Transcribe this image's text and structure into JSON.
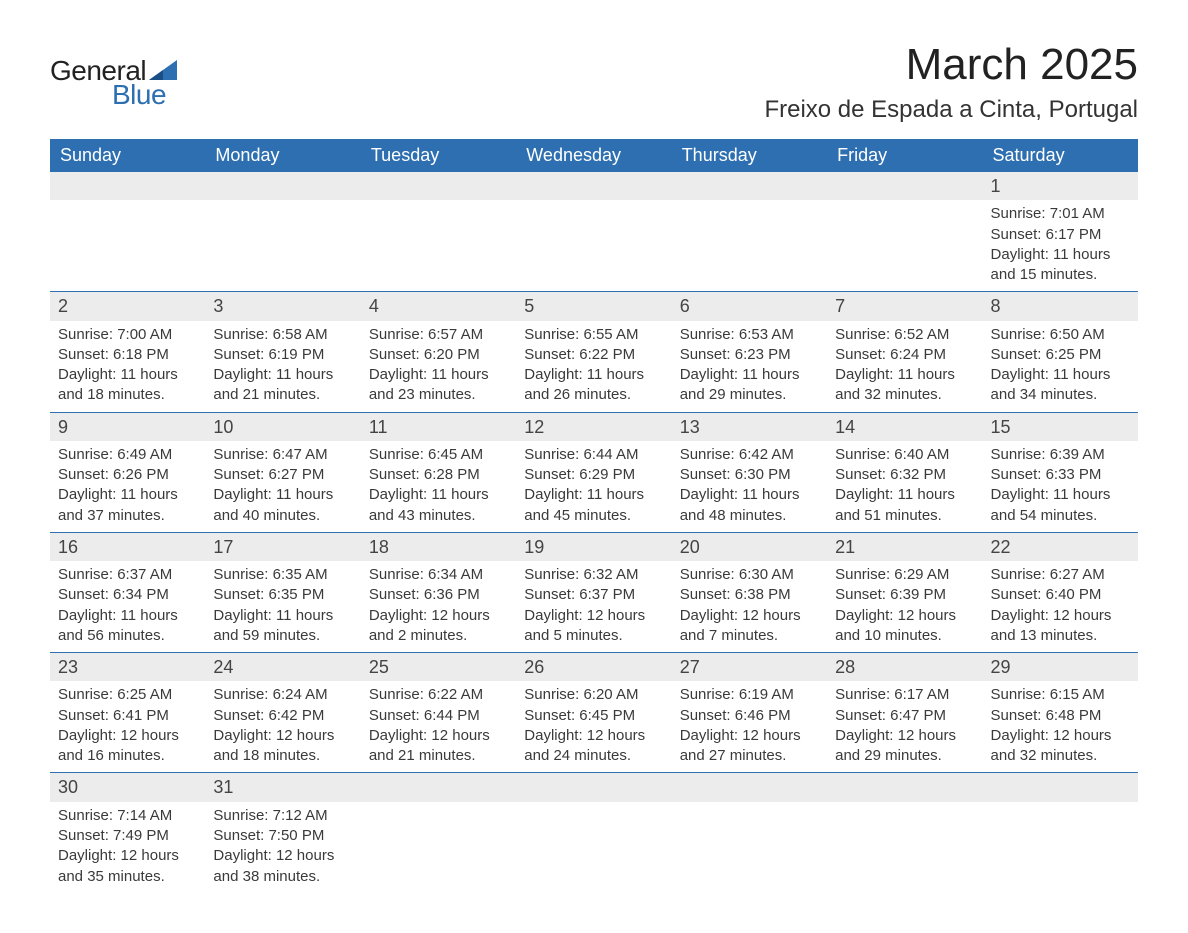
{
  "logo": {
    "text1": "General",
    "text2": "Blue"
  },
  "title": {
    "month": "March 2025",
    "location": "Freixo de Espada a Cinta, Portugal"
  },
  "colors": {
    "header_bg": "#2d6fb0",
    "header_text": "#ffffff",
    "daynum_bg": "#ececec",
    "row_border": "#2d6fb0",
    "page_bg": "#ffffff",
    "text": "#3a3a3a"
  },
  "weekdays": [
    "Sunday",
    "Monday",
    "Tuesday",
    "Wednesday",
    "Thursday",
    "Friday",
    "Saturday"
  ],
  "weeks": [
    [
      null,
      null,
      null,
      null,
      null,
      null,
      {
        "n": "1",
        "sunrise": "Sunrise: 7:01 AM",
        "sunset": "Sunset: 6:17 PM",
        "dl1": "Daylight: 11 hours",
        "dl2": "and 15 minutes."
      }
    ],
    [
      {
        "n": "2",
        "sunrise": "Sunrise: 7:00 AM",
        "sunset": "Sunset: 6:18 PM",
        "dl1": "Daylight: 11 hours",
        "dl2": "and 18 minutes."
      },
      {
        "n": "3",
        "sunrise": "Sunrise: 6:58 AM",
        "sunset": "Sunset: 6:19 PM",
        "dl1": "Daylight: 11 hours",
        "dl2": "and 21 minutes."
      },
      {
        "n": "4",
        "sunrise": "Sunrise: 6:57 AM",
        "sunset": "Sunset: 6:20 PM",
        "dl1": "Daylight: 11 hours",
        "dl2": "and 23 minutes."
      },
      {
        "n": "5",
        "sunrise": "Sunrise: 6:55 AM",
        "sunset": "Sunset: 6:22 PM",
        "dl1": "Daylight: 11 hours",
        "dl2": "and 26 minutes."
      },
      {
        "n": "6",
        "sunrise": "Sunrise: 6:53 AM",
        "sunset": "Sunset: 6:23 PM",
        "dl1": "Daylight: 11 hours",
        "dl2": "and 29 minutes."
      },
      {
        "n": "7",
        "sunrise": "Sunrise: 6:52 AM",
        "sunset": "Sunset: 6:24 PM",
        "dl1": "Daylight: 11 hours",
        "dl2": "and 32 minutes."
      },
      {
        "n": "8",
        "sunrise": "Sunrise: 6:50 AM",
        "sunset": "Sunset: 6:25 PM",
        "dl1": "Daylight: 11 hours",
        "dl2": "and 34 minutes."
      }
    ],
    [
      {
        "n": "9",
        "sunrise": "Sunrise: 6:49 AM",
        "sunset": "Sunset: 6:26 PM",
        "dl1": "Daylight: 11 hours",
        "dl2": "and 37 minutes."
      },
      {
        "n": "10",
        "sunrise": "Sunrise: 6:47 AM",
        "sunset": "Sunset: 6:27 PM",
        "dl1": "Daylight: 11 hours",
        "dl2": "and 40 minutes."
      },
      {
        "n": "11",
        "sunrise": "Sunrise: 6:45 AM",
        "sunset": "Sunset: 6:28 PM",
        "dl1": "Daylight: 11 hours",
        "dl2": "and 43 minutes."
      },
      {
        "n": "12",
        "sunrise": "Sunrise: 6:44 AM",
        "sunset": "Sunset: 6:29 PM",
        "dl1": "Daylight: 11 hours",
        "dl2": "and 45 minutes."
      },
      {
        "n": "13",
        "sunrise": "Sunrise: 6:42 AM",
        "sunset": "Sunset: 6:30 PM",
        "dl1": "Daylight: 11 hours",
        "dl2": "and 48 minutes."
      },
      {
        "n": "14",
        "sunrise": "Sunrise: 6:40 AM",
        "sunset": "Sunset: 6:32 PM",
        "dl1": "Daylight: 11 hours",
        "dl2": "and 51 minutes."
      },
      {
        "n": "15",
        "sunrise": "Sunrise: 6:39 AM",
        "sunset": "Sunset: 6:33 PM",
        "dl1": "Daylight: 11 hours",
        "dl2": "and 54 minutes."
      }
    ],
    [
      {
        "n": "16",
        "sunrise": "Sunrise: 6:37 AM",
        "sunset": "Sunset: 6:34 PM",
        "dl1": "Daylight: 11 hours",
        "dl2": "and 56 minutes."
      },
      {
        "n": "17",
        "sunrise": "Sunrise: 6:35 AM",
        "sunset": "Sunset: 6:35 PM",
        "dl1": "Daylight: 11 hours",
        "dl2": "and 59 minutes."
      },
      {
        "n": "18",
        "sunrise": "Sunrise: 6:34 AM",
        "sunset": "Sunset: 6:36 PM",
        "dl1": "Daylight: 12 hours",
        "dl2": "and 2 minutes."
      },
      {
        "n": "19",
        "sunrise": "Sunrise: 6:32 AM",
        "sunset": "Sunset: 6:37 PM",
        "dl1": "Daylight: 12 hours",
        "dl2": "and 5 minutes."
      },
      {
        "n": "20",
        "sunrise": "Sunrise: 6:30 AM",
        "sunset": "Sunset: 6:38 PM",
        "dl1": "Daylight: 12 hours",
        "dl2": "and 7 minutes."
      },
      {
        "n": "21",
        "sunrise": "Sunrise: 6:29 AM",
        "sunset": "Sunset: 6:39 PM",
        "dl1": "Daylight: 12 hours",
        "dl2": "and 10 minutes."
      },
      {
        "n": "22",
        "sunrise": "Sunrise: 6:27 AM",
        "sunset": "Sunset: 6:40 PM",
        "dl1": "Daylight: 12 hours",
        "dl2": "and 13 minutes."
      }
    ],
    [
      {
        "n": "23",
        "sunrise": "Sunrise: 6:25 AM",
        "sunset": "Sunset: 6:41 PM",
        "dl1": "Daylight: 12 hours",
        "dl2": "and 16 minutes."
      },
      {
        "n": "24",
        "sunrise": "Sunrise: 6:24 AM",
        "sunset": "Sunset: 6:42 PM",
        "dl1": "Daylight: 12 hours",
        "dl2": "and 18 minutes."
      },
      {
        "n": "25",
        "sunrise": "Sunrise: 6:22 AM",
        "sunset": "Sunset: 6:44 PM",
        "dl1": "Daylight: 12 hours",
        "dl2": "and 21 minutes."
      },
      {
        "n": "26",
        "sunrise": "Sunrise: 6:20 AM",
        "sunset": "Sunset: 6:45 PM",
        "dl1": "Daylight: 12 hours",
        "dl2": "and 24 minutes."
      },
      {
        "n": "27",
        "sunrise": "Sunrise: 6:19 AM",
        "sunset": "Sunset: 6:46 PM",
        "dl1": "Daylight: 12 hours",
        "dl2": "and 27 minutes."
      },
      {
        "n": "28",
        "sunrise": "Sunrise: 6:17 AM",
        "sunset": "Sunset: 6:47 PM",
        "dl1": "Daylight: 12 hours",
        "dl2": "and 29 minutes."
      },
      {
        "n": "29",
        "sunrise": "Sunrise: 6:15 AM",
        "sunset": "Sunset: 6:48 PM",
        "dl1": "Daylight: 12 hours",
        "dl2": "and 32 minutes."
      }
    ],
    [
      {
        "n": "30",
        "sunrise": "Sunrise: 7:14 AM",
        "sunset": "Sunset: 7:49 PM",
        "dl1": "Daylight: 12 hours",
        "dl2": "and 35 minutes."
      },
      {
        "n": "31",
        "sunrise": "Sunrise: 7:12 AM",
        "sunset": "Sunset: 7:50 PM",
        "dl1": "Daylight: 12 hours",
        "dl2": "and 38 minutes."
      },
      null,
      null,
      null,
      null,
      null
    ]
  ]
}
